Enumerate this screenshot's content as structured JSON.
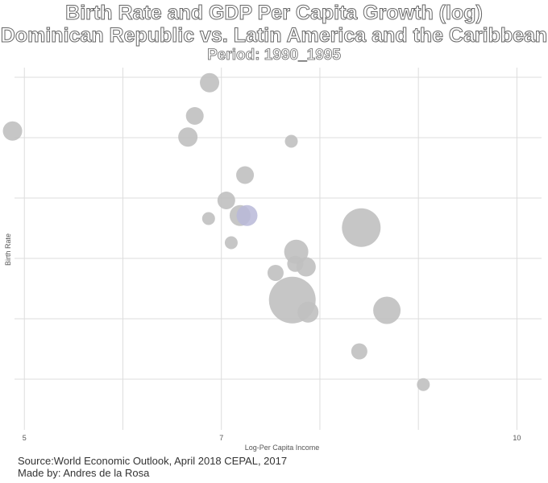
{
  "chart_data": {
    "type": "scatter",
    "title": "Birth Rate and GDP Per Capita Growth (log)",
    "subtitle": "Dominican Republic vs. Latin America and the Caribbean",
    "period": "Period: 1990_1995",
    "xlabel": "Log-Per Capita Income",
    "ylabel": "Birth Rate",
    "x_ticks": [
      "5",
      "7",
      "10"
    ],
    "xlim": [
      4.9,
      10.25
    ],
    "ylim": [
      0,
      6
    ],
    "grid": true,
    "colors": {
      "point": "#c0c0c0",
      "highlight": "#b8b8d8",
      "grid": "#dddddd"
    },
    "points": [
      {
        "x": 6.88,
        "y": 5.75,
        "size": 12
      },
      {
        "x": 6.73,
        "y": 5.2,
        "size": 11
      },
      {
        "x": 6.66,
        "y": 4.85,
        "size": 12
      },
      {
        "x": 4.88,
        "y": 4.95,
        "size": 12
      },
      {
        "x": 7.71,
        "y": 4.78,
        "size": 8
      },
      {
        "x": 7.24,
        "y": 4.22,
        "size": 11
      },
      {
        "x": 7.05,
        "y": 3.8,
        "size": 11
      },
      {
        "x": 6.87,
        "y": 3.5,
        "size": 8
      },
      {
        "x": 7.19,
        "y": 3.55,
        "size": 13
      },
      {
        "x": 7.26,
        "y": 3.55,
        "size": 13,
        "highlight": true
      },
      {
        "x": 7.1,
        "y": 3.1,
        "size": 8
      },
      {
        "x": 7.76,
        "y": 2.95,
        "size": 15
      },
      {
        "x": 7.75,
        "y": 2.75,
        "size": 10
      },
      {
        "x": 7.86,
        "y": 2.7,
        "size": 12
      },
      {
        "x": 7.55,
        "y": 2.6,
        "size": 10
      },
      {
        "x": 8.42,
        "y": 3.35,
        "size": 24
      },
      {
        "x": 7.72,
        "y": 2.15,
        "size": 29
      },
      {
        "x": 7.88,
        "y": 1.95,
        "size": 13
      },
      {
        "x": 8.68,
        "y": 1.98,
        "size": 17
      },
      {
        "x": 8.4,
        "y": 1.3,
        "size": 10
      },
      {
        "x": 9.05,
        "y": 0.75,
        "size": 8
      }
    ]
  },
  "footer": {
    "source": "Source:World Economic Outlook, April 2018 CEPAL, 2017",
    "author": "Made by: Andres de la Rosa"
  }
}
